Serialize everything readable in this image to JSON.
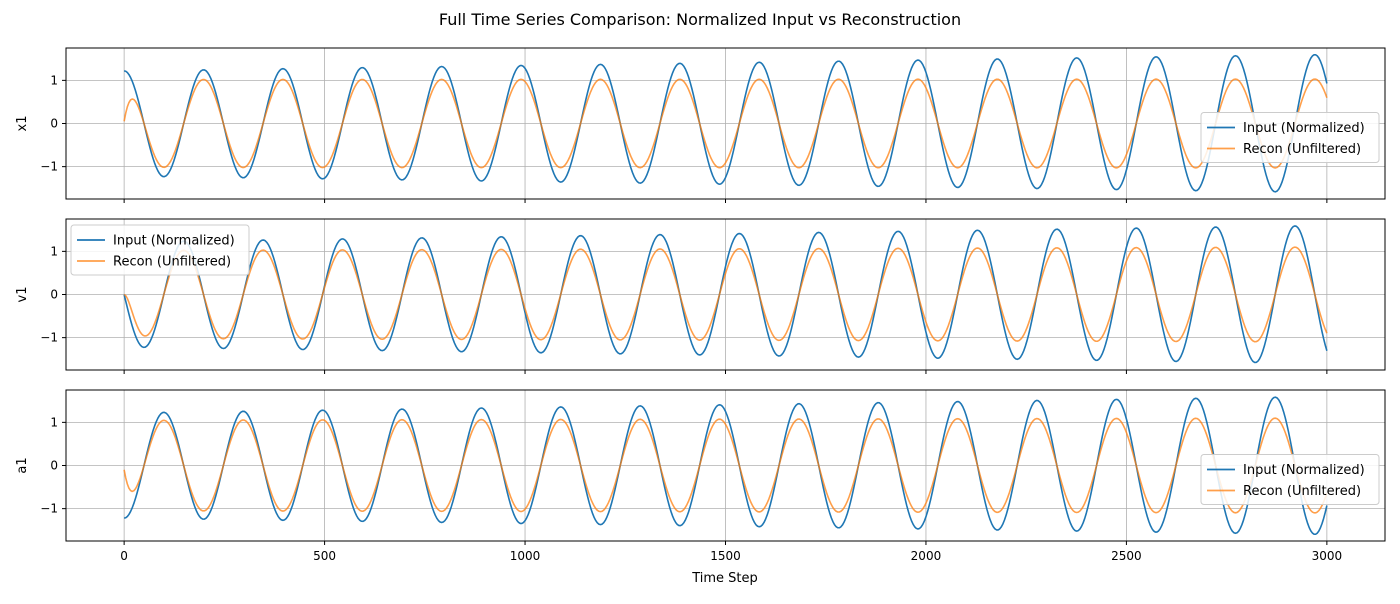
{
  "figure": {
    "title": "Full Time Series Comparison: Normalized Input vs Reconstruction"
  },
  "chart_data": {
    "type": "line",
    "title": "Full Time Series Comparison: Normalized Input vs Reconstruction",
    "xlabel": "Time Step",
    "x_range": [
      0,
      3000
    ],
    "xlim": [
      -145,
      3145
    ],
    "x_ticks": [
      0,
      500,
      1000,
      1500,
      2000,
      2500,
      3000
    ],
    "x_tick_labels": [
      "0",
      "500",
      "1000",
      "1500",
      "2000",
      "2500",
      "3000"
    ],
    "grid": true,
    "colors": {
      "input": "#1f77b4",
      "recon": "#ff7f0e"
    },
    "panels": [
      {
        "ylabel": "x1",
        "ylim": [
          -1.75,
          1.75
        ],
        "y_ticks": [
          -1,
          0,
          1
        ],
        "y_tick_labels": [
          "−1",
          "0",
          "1"
        ],
        "legend_position": "center right",
        "series": [
          {
            "name": "Input (Normalized)",
            "form": "sine",
            "amplitude_start": 1.22,
            "amplitude_end": 1.6,
            "period": 198,
            "phase": 1.571
          },
          {
            "name": "Recon (Unfiltered)",
            "form": "sine",
            "amplitude_start": 1.02,
            "amplitude_end": 1.03,
            "period": 198,
            "phase": 1.571,
            "start_value": 0.05
          }
        ]
      },
      {
        "ylabel": "v1",
        "ylim": [
          -1.75,
          1.75
        ],
        "y_ticks": [
          -1,
          0,
          1
        ],
        "y_tick_labels": [
          "−1",
          "0",
          "1"
        ],
        "legend_position": "upper left",
        "series": [
          {
            "name": "Input (Normalized)",
            "form": "sine",
            "amplitude_start": 1.22,
            "amplitude_end": 1.6,
            "period": 198,
            "phase": 3.1416
          },
          {
            "name": "Recon (Unfiltered)",
            "form": "sine",
            "amplitude_start": 1.02,
            "amplitude_end": 1.1,
            "period": 198,
            "phase": 3.1416,
            "start_value": 0.0
          }
        ]
      },
      {
        "ylabel": "a1",
        "ylim": [
          -1.75,
          1.75
        ],
        "y_ticks": [
          -1,
          0,
          1
        ],
        "y_tick_labels": [
          "−1",
          "0",
          "1"
        ],
        "legend_position": "center right",
        "series": [
          {
            "name": "Input (Normalized)",
            "form": "sine",
            "amplitude_start": 1.22,
            "amplitude_end": 1.6,
            "period": 198,
            "phase": -1.571
          },
          {
            "name": "Recon (Unfiltered)",
            "form": "sine",
            "amplitude_start": 1.05,
            "amplitude_end": 1.1,
            "period": 198,
            "phase": -1.571,
            "start_value": -0.1
          }
        ]
      }
    ]
  }
}
